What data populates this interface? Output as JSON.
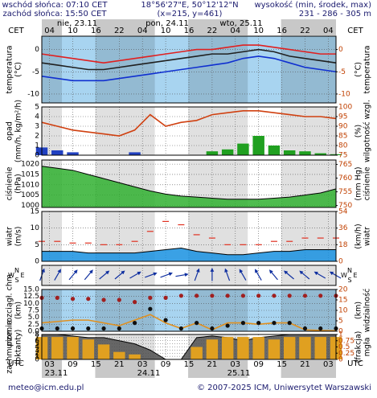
{
  "header": {
    "sunrise": "wschód słońca: 07:10 CET",
    "sunset": "zachód słońca: 15:50 CET",
    "coords": "18°56'27\"E, 50°12'12\"N",
    "grid": "(x=215, y=461)",
    "elevation_label": "wysokość (min, środek, max)",
    "elevation": "231 - 286 - 305 m"
  },
  "footer": {
    "email": "meteo@icm.edu.pl",
    "copyright": "© 2007-2025 ICM, Uniwersytet Warszawski"
  },
  "time_axis": {
    "xlim": [
      0,
      76
    ],
    "cet_label": "CET",
    "utc_label": "UTC",
    "cet_ticks": [
      {
        "value": 2,
        "label": "04"
      },
      {
        "value": 8,
        "label": "10"
      },
      {
        "value": 14,
        "label": "16"
      },
      {
        "value": 20,
        "label": "22"
      },
      {
        "value": 26,
        "label": "04"
      },
      {
        "value": 32,
        "label": "10"
      },
      {
        "value": 38,
        "label": "16"
      },
      {
        "value": 44,
        "label": "22"
      },
      {
        "value": 50,
        "label": "04"
      },
      {
        "value": 56,
        "label": "10"
      },
      {
        "value": 62,
        "label": "16"
      },
      {
        "value": 68,
        "label": "22"
      },
      {
        "value": 74,
        "label": "04"
      }
    ],
    "utc_ticks": [
      {
        "value": 2,
        "label": "03"
      },
      {
        "value": 8,
        "label": "09"
      },
      {
        "value": 14,
        "label": "15"
      },
      {
        "value": 20,
        "label": "21"
      },
      {
        "value": 26,
        "label": "03"
      },
      {
        "value": 32,
        "label": "09"
      },
      {
        "value": 38,
        "label": "15"
      },
      {
        "value": 44,
        "label": "21"
      },
      {
        "value": 50,
        "label": "03"
      },
      {
        "value": 56,
        "label": "09"
      },
      {
        "value": 62,
        "label": "15"
      },
      {
        "value": 68,
        "label": "21"
      },
      {
        "value": 74,
        "label": "03"
      }
    ],
    "dates_top": [
      "nie, 23.11",
      "pon, 24.11",
      "wto, 25.11"
    ],
    "dates_bottom": [
      "23.11",
      "24.11",
      "25.11"
    ]
  },
  "chart_data": [
    {
      "type": "line",
      "ylabel": [
        "temperatura",
        "(°C)"
      ],
      "y2label": [
        "(°C)",
        "temperatura"
      ],
      "xlim": [
        0,
        76
      ],
      "ylim": [
        -12,
        3
      ],
      "yticks": [
        -10,
        -5,
        0
      ],
      "y2lim": [
        -12,
        3
      ],
      "y2ticks": [
        -10,
        -5,
        0
      ],
      "background": "#a8d4f0",
      "grid": true,
      "x": [
        0,
        4,
        8,
        12,
        16,
        20,
        24,
        28,
        32,
        36,
        40,
        44,
        48,
        52,
        56,
        60,
        64,
        68,
        72,
        76
      ],
      "series": [
        {
          "type": "line",
          "color": "#e02020",
          "values": [
            -1,
            -1.5,
            -2,
            -2.5,
            -3,
            -2.5,
            -2,
            -1.5,
            -1,
            -0.5,
            0,
            0,
            0.5,
            1,
            1,
            0.5,
            0,
            -0.5,
            -1,
            -1
          ]
        },
        {
          "type": "line",
          "color": "#202020",
          "values": [
            -3,
            -3.5,
            -4,
            -4.5,
            -4.5,
            -4,
            -3.5,
            -3,
            -2.5,
            -2,
            -1.5,
            -1,
            -1,
            -0.5,
            0,
            -0.5,
            -1.5,
            -2,
            -2.5,
            -3
          ]
        },
        {
          "type": "line",
          "color": "#1030d0",
          "values": [
            -6,
            -6.5,
            -7,
            -7,
            -7,
            -6.5,
            -6,
            -5.5,
            -5,
            -4.5,
            -4,
            -3.5,
            -3,
            -2,
            -1.5,
            -2,
            -3,
            -4,
            -4.5,
            -5
          ]
        }
      ]
    },
    {
      "type": "bar",
      "ylabel": [
        "opad",
        "(mm/h, kg/m²/h)"
      ],
      "y2label": [
        "(%)",
        "wilgotność wzgl."
      ],
      "xlim": [
        0,
        76
      ],
      "ylim": [
        0,
        5
      ],
      "yticks": [
        0,
        1,
        2,
        3,
        4,
        5
      ],
      "y2lim": [
        75,
        100
      ],
      "y2ticks": [
        75,
        80,
        85,
        90,
        95,
        100
      ],
      "background": "#ffffff",
      "grid": true,
      "x": [
        0,
        4,
        8,
        12,
        16,
        20,
        24,
        28,
        32,
        36,
        40,
        44,
        48,
        52,
        56,
        60,
        64,
        68,
        72,
        76
      ],
      "series": [
        {
          "type": "bar",
          "color": "#2040c0",
          "values": [
            0.8,
            0.5,
            0.3,
            0,
            0,
            0,
            0.3,
            0,
            0,
            0,
            0,
            0,
            0,
            0,
            0,
            0,
            0,
            0,
            0,
            0
          ]
        },
        {
          "type": "bar",
          "color": "#20a020",
          "values": [
            0,
            0,
            0,
            0,
            0,
            0,
            0,
            0,
            0,
            0,
            0,
            0.4,
            0.6,
            1.2,
            2,
            1,
            0.5,
            0.4,
            0.2,
            0.1
          ]
        },
        {
          "type": "line",
          "axis": "y2",
          "color": "#d04010",
          "values": [
            92,
            90,
            88,
            87,
            86,
            85,
            88,
            96,
            90,
            92,
            93,
            96,
            97,
            98,
            98,
            97,
            96,
            95,
            95,
            94
          ]
        }
      ]
    },
    {
      "type": "area",
      "ylabel": [
        "ciśnienie",
        "(hPa)"
      ],
      "y2label": [
        "(mm Hg)",
        "ciśnienie"
      ],
      "xlim": [
        0,
        76
      ],
      "ylim": [
        999,
        1022
      ],
      "yticks": [
        1000,
        1005,
        1010,
        1015,
        1020
      ],
      "y2lim": [
        749.3,
        766.6
      ],
      "y2ticks": [
        750,
        755,
        760,
        765
      ],
      "background": "#ffffff",
      "grid": true,
      "x": [
        0,
        4,
        8,
        12,
        16,
        20,
        24,
        28,
        32,
        36,
        40,
        44,
        48,
        52,
        56,
        60,
        64,
        68,
        72,
        76
      ],
      "series": [
        {
          "type": "area",
          "color": "#30b030",
          "values": [
            1019,
            1018,
            1017,
            1015,
            1013,
            1011,
            1009,
            1007,
            1005.5,
            1004.5,
            1004,
            1003.5,
            1003,
            1003,
            1003,
            1003.5,
            1004,
            1005,
            1006,
            1008
          ]
        }
      ]
    },
    {
      "type": "area",
      "ylabel": [
        "wiatr",
        "(m/s)"
      ],
      "y2label": [
        "(km/h)",
        "wiatr"
      ],
      "xlim": [
        0,
        76
      ],
      "ylim": [
        0,
        15
      ],
      "yticks": [
        0,
        5,
        10,
        15
      ],
      "y2lim": [
        0,
        54
      ],
      "y2ticks": [
        0,
        18,
        36,
        54
      ],
      "background": "#ffffff",
      "grid": true,
      "x": [
        0,
        4,
        8,
        12,
        16,
        20,
        24,
        28,
        32,
        36,
        40,
        44,
        48,
        52,
        56,
        60,
        64,
        68,
        72,
        76
      ],
      "series": [
        {
          "type": "area",
          "color": "#1890e0",
          "values": [
            3,
            3,
            3,
            2.5,
            2.5,
            2.5,
            2.5,
            3,
            3.5,
            4,
            3,
            2.5,
            2,
            2,
            2.5,
            3,
            3,
            3.5,
            3.5,
            3.5
          ]
        },
        {
          "type": "dash",
          "color": "#e03020",
          "values": [
            6,
            6,
            5.5,
            5.5,
            5,
            5,
            6,
            9,
            12,
            11,
            8,
            7,
            5,
            5,
            5,
            6,
            6,
            7,
            7,
            7
          ]
        }
      ]
    },
    {
      "type": "arrow",
      "compass": [
        "W",
        "S",
        "N",
        "E"
      ],
      "xlim": [
        0,
        76
      ],
      "background": "#ffffff",
      "x": [
        0,
        4,
        8,
        12,
        16,
        20,
        24,
        28,
        32,
        36,
        40,
        44,
        48,
        52,
        56,
        60,
        64,
        68,
        72,
        76
      ],
      "series": [
        {
          "type": "arrow",
          "color": "#1030a0",
          "values": [
            200,
            210,
            220,
            220,
            230,
            230,
            240,
            250,
            250,
            260,
            200,
            180,
            160,
            150,
            150,
            140,
            130,
            130,
            120,
            120
          ]
        }
      ]
    },
    {
      "type": "line",
      "ylabel": [
        "pion. rozciągł. chm",
        "(km)"
      ],
      "y2label": [
        "(km)",
        "widzialność"
      ],
      "xlim": [
        0,
        76
      ],
      "ylim": [
        0,
        15
      ],
      "yticks": [
        {
          "value": 0,
          "label": "0.0"
        },
        2.5,
        {
          "value": 5,
          "label": "5.0"
        },
        7.5,
        {
          "value": 10,
          "label": "10.0"
        },
        12.5,
        {
          "value": 15,
          "label": "15.0"
        }
      ],
      "y2lim": [
        0,
        20
      ],
      "y2ticks": [
        0,
        5,
        10,
        15,
        20
      ],
      "background": "#a8d4f0",
      "grid": true,
      "x": [
        0,
        4,
        8,
        12,
        16,
        20,
        24,
        28,
        32,
        36,
        40,
        44,
        48,
        52,
        56,
        60,
        64,
        68,
        72,
        76
      ],
      "series": [
        {
          "type": "scatter",
          "axis": "y2",
          "color": "#a02020",
          "values": [
            16,
            16,
            15.5,
            15.5,
            15,
            15,
            14,
            16,
            16,
            17,
            17,
            17,
            17,
            17,
            17,
            17,
            17,
            17,
            17,
            17
          ]
        },
        {
          "type": "line",
          "color": "#e09020",
          "values": [
            3,
            3.5,
            4,
            4,
            3,
            2,
            4,
            6,
            3,
            1,
            3,
            0.5,
            3,
            3,
            2.5,
            3,
            3,
            0.5,
            0.3,
            0.2
          ]
        },
        {
          "type": "scatter",
          "color": "#101010",
          "values": [
            1,
            1,
            1,
            1,
            1,
            1,
            3,
            8,
            4,
            1,
            3,
            1,
            2,
            3,
            3,
            3,
            3,
            1,
            1,
            1
          ]
        }
      ]
    },
    {
      "type": "area",
      "ylabel": [
        "zachmurzenie",
        "(oktanty)"
      ],
      "y2label": [
        "(frakcja)",
        "mgła"
      ],
      "xlim": [
        0,
        76
      ],
      "ylim": [
        0,
        8
      ],
      "yticks": [
        0,
        1,
        2,
        3,
        4,
        5,
        6,
        7,
        8
      ],
      "y2lim": [
        0,
        1
      ],
      "y2ticks": [
        0,
        0.25,
        0.5,
        0.75,
        1
      ],
      "background": "#ffffff",
      "grid": true,
      "x": [
        0,
        4,
        8,
        12,
        16,
        20,
        24,
        28,
        32,
        36,
        40,
        44,
        48,
        52,
        56,
        60,
        64,
        68,
        72,
        76
      ],
      "series": [
        {
          "type": "area",
          "color": "#505050",
          "values": [
            8,
            8,
            7.5,
            7,
            7,
            6,
            5,
            3,
            0,
            0,
            7,
            7.5,
            7,
            6,
            7,
            7.5,
            8,
            8,
            8,
            8
          ]
        },
        {
          "type": "bar",
          "axis": "y2",
          "color": "#e0a020",
          "values": [
            0.9,
            0.9,
            0.9,
            0.8,
            0.6,
            0.3,
            0.2,
            0,
            0,
            0,
            0.5,
            0.8,
            0.9,
            0.9,
            0.9,
            0.8,
            0.9,
            0.9,
            0.9,
            0.9
          ]
        }
      ]
    }
  ]
}
